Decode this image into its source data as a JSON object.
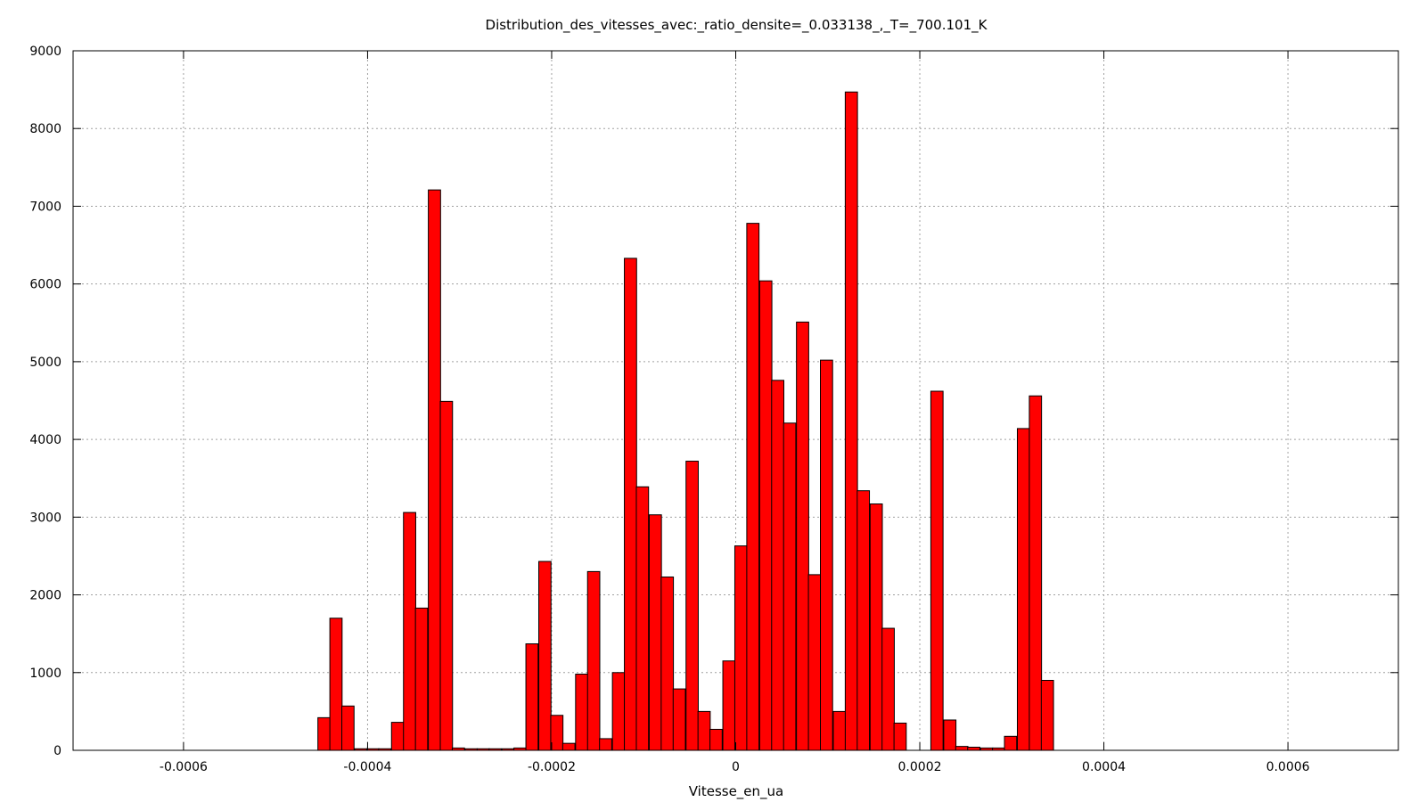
{
  "chart_data": {
    "type": "bar",
    "title": "Distribution_des_vitesses_avec:_ratio_densite=_0.033138_,_T=_700.101_K",
    "xlabel": "Vitesse_en_ua",
    "ylabel": "",
    "xlim": [
      -0.00072,
      0.00072
    ],
    "ylim": [
      0,
      9000
    ],
    "grid": true,
    "bar_color": "#ff0000",
    "bar_edge_color": "#000000",
    "bin_width": 1.33e-05,
    "x_ticks": [
      {
        "value": -0.0006,
        "label": "-0.0006"
      },
      {
        "value": -0.0004,
        "label": "-0.0004"
      },
      {
        "value": -0.0002,
        "label": "-0.0002"
      },
      {
        "value": 0,
        "label": "0"
      },
      {
        "value": 0.0002,
        "label": "0.0002"
      },
      {
        "value": 0.0004,
        "label": "0.0004"
      },
      {
        "value": 0.0006,
        "label": "0.0006"
      }
    ],
    "y_ticks": [
      {
        "value": 0,
        "label": "0"
      },
      {
        "value": 1000,
        "label": "1000"
      },
      {
        "value": 2000,
        "label": "2000"
      },
      {
        "value": 3000,
        "label": "3000"
      },
      {
        "value": 4000,
        "label": "4000"
      },
      {
        "value": 5000,
        "label": "5000"
      },
      {
        "value": 6000,
        "label": "6000"
      },
      {
        "value": 7000,
        "label": "7000"
      },
      {
        "value": 8000,
        "label": "8000"
      },
      {
        "value": 9000,
        "label": "9000"
      }
    ],
    "bars": [
      {
        "x": -0.000454,
        "y": 420
      },
      {
        "x": -0.000441,
        "y": 1700
      },
      {
        "x": -0.000428,
        "y": 570
      },
      {
        "x": -0.000414,
        "y": 20
      },
      {
        "x": -0.000401,
        "y": 20
      },
      {
        "x": -0.000388,
        "y": 20
      },
      {
        "x": -0.000374,
        "y": 360
      },
      {
        "x": -0.000361,
        "y": 3060
      },
      {
        "x": -0.000348,
        "y": 1830
      },
      {
        "x": -0.000334,
        "y": 7210
      },
      {
        "x": -0.000321,
        "y": 4490
      },
      {
        "x": -0.000308,
        "y": 30
      },
      {
        "x": -0.000294,
        "y": 20
      },
      {
        "x": -0.000281,
        "y": 20
      },
      {
        "x": -0.000268,
        "y": 20
      },
      {
        "x": -0.000254,
        "y": 20
      },
      {
        "x": -0.000241,
        "y": 30
      },
      {
        "x": -0.000228,
        "y": 1370
      },
      {
        "x": -0.000214,
        "y": 2430
      },
      {
        "x": -0.000201,
        "y": 450
      },
      {
        "x": -0.000188,
        "y": 90
      },
      {
        "x": -0.000174,
        "y": 980
      },
      {
        "x": -0.000161,
        "y": 2300
      },
      {
        "x": -0.000148,
        "y": 150
      },
      {
        "x": -0.000134,
        "y": 1000
      },
      {
        "x": -0.000121,
        "y": 6330
      },
      {
        "x": -0.000108,
        "y": 3390
      },
      {
        "x": -9.4e-05,
        "y": 3030
      },
      {
        "x": -8.1e-05,
        "y": 2230
      },
      {
        "x": -6.8e-05,
        "y": 790
      },
      {
        "x": -5.4e-05,
        "y": 3720
      },
      {
        "x": -4.1e-05,
        "y": 500
      },
      {
        "x": -2.8e-05,
        "y": 270
      },
      {
        "x": -1.4e-05,
        "y": 1150
      },
      {
        "x": -1e-06,
        "y": 2630
      },
      {
        "x": 1.2e-05,
        "y": 6780
      },
      {
        "x": 2.6e-05,
        "y": 6040
      },
      {
        "x": 3.9e-05,
        "y": 4760
      },
      {
        "x": 5.2e-05,
        "y": 4210
      },
      {
        "x": 6.6e-05,
        "y": 5510
      },
      {
        "x": 7.9e-05,
        "y": 2260
      },
      {
        "x": 9.2e-05,
        "y": 5020
      },
      {
        "x": 0.000106,
        "y": 500
      },
      {
        "x": 0.000119,
        "y": 8470
      },
      {
        "x": 0.000132,
        "y": 3340
      },
      {
        "x": 0.000146,
        "y": 3170
      },
      {
        "x": 0.000159,
        "y": 1570
      },
      {
        "x": 0.000172,
        "y": 350
      },
      {
        "x": 0.000212,
        "y": 4620
      },
      {
        "x": 0.000226,
        "y": 390
      },
      {
        "x": 0.000239,
        "y": 50
      },
      {
        "x": 0.000252,
        "y": 40
      },
      {
        "x": 0.000266,
        "y": 30
      },
      {
        "x": 0.000279,
        "y": 30
      },
      {
        "x": 0.000292,
        "y": 180
      },
      {
        "x": 0.000306,
        "y": 4140
      },
      {
        "x": 0.000319,
        "y": 4560
      },
      {
        "x": 0.000332,
        "y": 900
      }
    ]
  }
}
